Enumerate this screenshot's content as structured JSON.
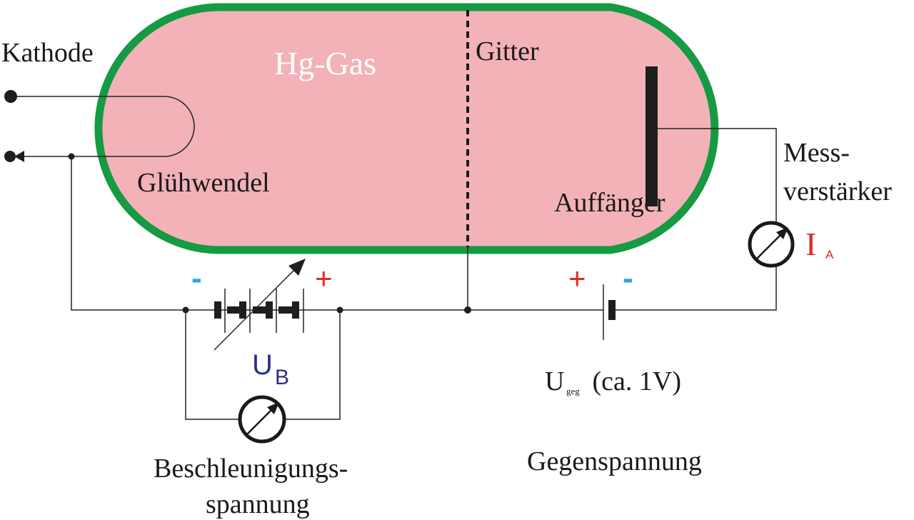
{
  "labels": {
    "cathode": "Kathode",
    "gas": "Hg-Gas",
    "grid": "Gitter",
    "filament": "Glühwendel",
    "collector": "Auffänger",
    "amplifier_line1": "Mess-",
    "amplifier_line2": "verstärker",
    "current_main": "I",
    "current_sub": "A",
    "accel_voltage_main": "U",
    "accel_voltage_sub": "B",
    "counter_voltage_main": "U",
    "counter_voltage_sub": "geg",
    "counter_voltage_note": " (ca. 1V)",
    "accel_caption_line1": "Beschleunigungs-",
    "accel_caption_line2": "spannung",
    "counter_caption": "Gegenspannung",
    "accel_minus": "-",
    "accel_plus": "+",
    "counter_plus": "+",
    "counter_minus": "-"
  },
  "colors": {
    "tube_fill": "#f3b2b8",
    "tube_border": "#169a43",
    "wire": "#222222",
    "plus_sign": "#e02a2a",
    "minus_sign": "#2aa6e0",
    "accel_label": "#2b2f86",
    "current_label": "#e02a2a",
    "gas_label": "#ffffff"
  }
}
